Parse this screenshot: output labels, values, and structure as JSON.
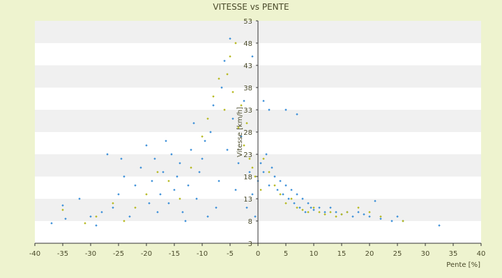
{
  "chart_data": {
    "type": "scatter",
    "title": "VITESSE vs PENTE",
    "xlabel": "Pente [%]",
    "ylabel": "Vitesse [km/h]",
    "xlim": [
      -40,
      40
    ],
    "ylim": [
      3,
      53
    ],
    "x_ticks": [
      "-40",
      "-35",
      "-30",
      "-25",
      "-20",
      "-15",
      "-10",
      "-5",
      "0",
      "5",
      "10",
      "15",
      "20",
      "25",
      "30",
      "35",
      "40"
    ],
    "y_ticks": [
      "3",
      "8",
      "13",
      "18",
      "23",
      "28",
      "33",
      "38",
      "43",
      "48",
      "53"
    ],
    "grid": "horizontal alternating bands",
    "colors": {
      "series_a": "#3b8fd8",
      "series_b": "#b5b81e"
    },
    "series": [
      {
        "color": "#3b8fd8",
        "points": [
          [
            -37,
            7.5
          ],
          [
            -35,
            11.5
          ],
          [
            -34.5,
            8.5
          ],
          [
            -32,
            13
          ],
          [
            -30,
            9
          ],
          [
            -29,
            7
          ],
          [
            -28,
            10
          ],
          [
            -27,
            23
          ],
          [
            -26,
            11
          ],
          [
            -25,
            14
          ],
          [
            -24.5,
            22
          ],
          [
            -24,
            18
          ],
          [
            -23,
            9
          ],
          [
            -22,
            16
          ],
          [
            -21,
            20
          ],
          [
            -20,
            25
          ],
          [
            -19.5,
            12
          ],
          [
            -19,
            17
          ],
          [
            -18.5,
            22
          ],
          [
            -18,
            10
          ],
          [
            -17.5,
            14
          ],
          [
            -17,
            19
          ],
          [
            -16.5,
            26
          ],
          [
            -16,
            12
          ],
          [
            -15.5,
            23
          ],
          [
            -15,
            15
          ],
          [
            -14.5,
            18
          ],
          [
            -14,
            21
          ],
          [
            -13.5,
            10
          ],
          [
            -13,
            8
          ],
          [
            -12.5,
            16
          ],
          [
            -12,
            24
          ],
          [
            -11.5,
            30
          ],
          [
            -11,
            13
          ],
          [
            -10.5,
            19
          ],
          [
            -10,
            22
          ],
          [
            -9.5,
            26
          ],
          [
            -9,
            9
          ],
          [
            -8.5,
            28
          ],
          [
            -8,
            34
          ],
          [
            -7.5,
            11
          ],
          [
            -7,
            17
          ],
          [
            -6.5,
            38
          ],
          [
            -6,
            44
          ],
          [
            -5.5,
            24
          ],
          [
            -5,
            49
          ],
          [
            -4.5,
            31
          ],
          [
            -4,
            15
          ],
          [
            -3.5,
            21
          ],
          [
            -3,
            27
          ],
          [
            -2.5,
            35
          ],
          [
            -2,
            11
          ],
          [
            -1.5,
            19
          ],
          [
            -1,
            14
          ],
          [
            -0.5,
            9
          ],
          [
            0,
            17
          ],
          [
            0.5,
            21
          ],
          [
            1,
            19
          ],
          [
            1.5,
            23
          ],
          [
            2,
            16
          ],
          [
            2.5,
            20
          ],
          [
            3,
            18
          ],
          [
            3.5,
            15
          ],
          [
            4,
            17
          ],
          [
            4.5,
            14
          ],
          [
            5,
            16
          ],
          [
            5.5,
            13
          ],
          [
            6,
            15
          ],
          [
            6.5,
            12
          ],
          [
            7,
            14
          ],
          [
            7.5,
            11
          ],
          [
            8,
            13
          ],
          [
            8.5,
            10
          ],
          [
            9,
            12
          ],
          [
            9.5,
            11
          ],
          [
            10,
            10.5
          ],
          [
            11,
            11
          ],
          [
            12,
            10
          ],
          [
            13,
            11
          ],
          [
            14,
            10
          ],
          [
            15,
            9.5
          ],
          [
            16,
            10
          ],
          [
            17,
            9
          ],
          [
            18,
            10
          ],
          [
            19,
            9.5
          ],
          [
            20,
            9
          ],
          [
            21,
            12.5
          ],
          [
            22,
            8.5
          ],
          [
            24,
            8
          ],
          [
            25,
            9
          ],
          [
            26,
            8
          ],
          [
            32.5,
            7
          ],
          [
            2,
            33
          ],
          [
            5,
            33
          ],
          [
            7,
            32
          ],
          [
            1,
            35
          ],
          [
            -1,
            45
          ]
        ]
      },
      {
        "color": "#b5b81e",
        "points": [
          [
            -35,
            10.5
          ],
          [
            -31,
            7.5
          ],
          [
            -29,
            9
          ],
          [
            -26,
            12
          ],
          [
            -24,
            8
          ],
          [
            -22,
            11
          ],
          [
            -20,
            14
          ],
          [
            -18,
            19
          ],
          [
            -16,
            17
          ],
          [
            -14,
            13
          ],
          [
            -12,
            20
          ],
          [
            -10,
            27
          ],
          [
            -9,
            31
          ],
          [
            -8,
            36
          ],
          [
            -7,
            40
          ],
          [
            -6,
            33
          ],
          [
            -5.5,
            41
          ],
          [
            -5,
            45
          ],
          [
            -4.5,
            37
          ],
          [
            -4,
            48
          ],
          [
            -3.5,
            29
          ],
          [
            -3,
            34
          ],
          [
            -2.5,
            25
          ],
          [
            -2,
            30
          ],
          [
            -1.5,
            22
          ],
          [
            -1,
            20
          ],
          [
            -0.5,
            18
          ],
          [
            0.5,
            15
          ],
          [
            1,
            22
          ],
          [
            2,
            19
          ],
          [
            3,
            16
          ],
          [
            4,
            14
          ],
          [
            5,
            12
          ],
          [
            6,
            13
          ],
          [
            7,
            11
          ],
          [
            8,
            10.5
          ],
          [
            9,
            10
          ],
          [
            10,
            11
          ],
          [
            11,
            10
          ],
          [
            12,
            9.5
          ],
          [
            13,
            10
          ],
          [
            14,
            9
          ],
          [
            15,
            9.5
          ],
          [
            16,
            10
          ],
          [
            18,
            11
          ],
          [
            20,
            10
          ],
          [
            22,
            9
          ],
          [
            26,
            8
          ]
        ]
      }
    ]
  }
}
